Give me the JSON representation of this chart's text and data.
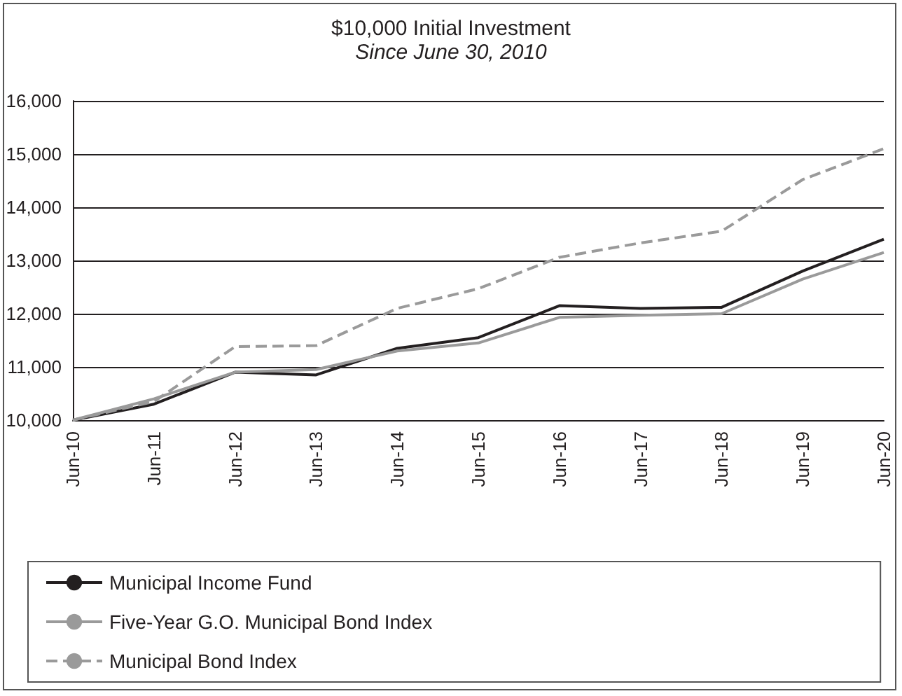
{
  "chart_data": {
    "type": "line",
    "title": "$10,000 Initial Investment",
    "subtitle": "Since June 30, 2010",
    "categories": [
      "Jun-10",
      "Jun-11",
      "Jun-12",
      "Jun-13",
      "Jun-14",
      "Jun-15",
      "Jun-16",
      "Jun-17",
      "Jun-18",
      "Jun-19",
      "Jun-20"
    ],
    "series": [
      {
        "name": "Municipal Income Fund",
        "color": "#231f20",
        "line_style": "solid",
        "values": [
          10000,
          10300,
          10900,
          10850,
          11350,
          11550,
          12150,
          12100,
          12120,
          12800,
          13400
        ]
      },
      {
        "name": "Five-Year G.O. Municipal Bond Index",
        "color": "#9a9a9a",
        "line_style": "solid",
        "values": [
          10000,
          10400,
          10900,
          10950,
          11300,
          11450,
          11930,
          11970,
          12000,
          12650,
          13150
        ]
      },
      {
        "name": "Municipal Bond Index",
        "color": "#9a9a9a",
        "line_style": "dashed",
        "values": [
          10000,
          10350,
          11380,
          11400,
          12100,
          12470,
          13060,
          13330,
          13550,
          14520,
          15100
        ]
      }
    ],
    "ylim": [
      10000,
      16000
    ],
    "yticks": [
      {
        "value": 10000,
        "label": "10,000"
      },
      {
        "value": 11000,
        "label": "11,000"
      },
      {
        "value": 12000,
        "label": "12,000"
      },
      {
        "value": 13000,
        "label": "13,000"
      },
      {
        "value": 14000,
        "label": "14,000"
      },
      {
        "value": 15000,
        "label": "15,000"
      },
      {
        "value": 16000,
        "label": "16,000"
      }
    ],
    "grid": "y",
    "legend": "bottom",
    "marker": "none"
  }
}
